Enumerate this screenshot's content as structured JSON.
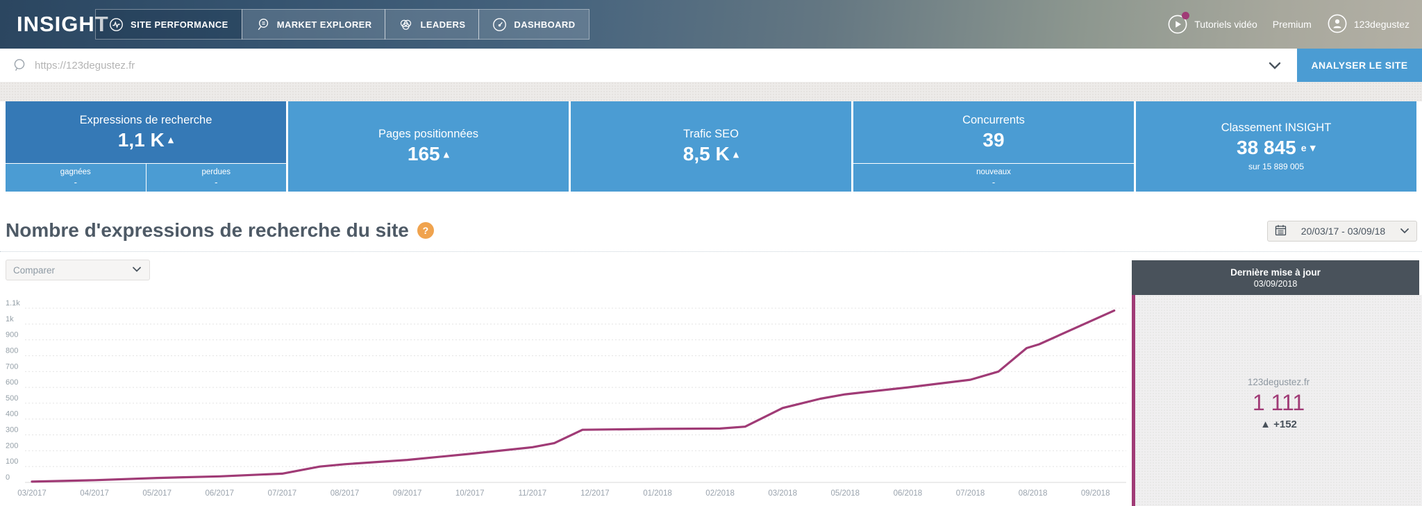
{
  "brand": {
    "logo": "INSIGHT"
  },
  "nav": {
    "tabs": [
      {
        "label": "SITE PERFORMANCE",
        "icon": "pulse-icon",
        "active": true
      },
      {
        "label": "MARKET EXPLORER",
        "icon": "magnifier-lines-icon",
        "active": false
      },
      {
        "label": "LEADERS",
        "icon": "venn-icon",
        "active": false
      },
      {
        "label": "DASHBOARD",
        "icon": "gauge-icon",
        "active": false
      }
    ]
  },
  "user_area": {
    "tutorials": "Tutoriels vidéo",
    "premium": "Premium",
    "username": "123degustez"
  },
  "search": {
    "url": "https://123degustez.fr",
    "analyze_button": "ANALYSER LE SITE"
  },
  "kpi_cards": [
    {
      "title": "Expressions de recherche",
      "value": "1,1 K",
      "trend": "up",
      "sub_cells": [
        {
          "label": "gagnées",
          "value": "-"
        },
        {
          "label": "perdues",
          "value": "-"
        }
      ]
    },
    {
      "title": "Pages positionnées",
      "value": "165",
      "trend": "up"
    },
    {
      "title": "Trafic SEO",
      "value": "8,5 K",
      "trend": "up"
    },
    {
      "title": "Concurrents",
      "value": "39",
      "sub_cells": [
        {
          "label": "nouveaux",
          "value": "-"
        }
      ]
    },
    {
      "title": "Classement INSIGHT",
      "value": "38 845",
      "ordinal": "e",
      "trend": "down",
      "subtitle": "sur 15 889 005"
    }
  ],
  "section": {
    "title": "Nombre d'expressions de recherche du site",
    "help": "?"
  },
  "date_range": {
    "label": "20/03/17 - 03/09/18"
  },
  "compare": {
    "placeholder": "Comparer"
  },
  "tooltip_panel": {
    "header": "Dernière mise à jour",
    "date": "03/09/2018",
    "site": "123degustez.fr",
    "value": "1 111",
    "delta": "+152"
  },
  "icons": {
    "trend_up": "▲",
    "trend_down": "▼"
  },
  "colors": {
    "accent_blue": "#4b9cd3",
    "dark_blue": "#3579b6",
    "line_magenta": "#a03b76",
    "panel_dark": "#49525b",
    "help_orange": "#f0a34e"
  },
  "chart_data": {
    "type": "line",
    "title": "Nombre d'expressions de recherche du site",
    "xlabel": "",
    "ylabel": "",
    "ylim": [
      0,
      1100
    ],
    "grid": "horizontal-dotted",
    "legend_position": "none",
    "x_labels": [
      "03/2017",
      "04/2017",
      "05/2017",
      "06/2017",
      "07/2017",
      "08/2017",
      "09/2017",
      "10/2017",
      "11/2017",
      "12/2017",
      "01/2018",
      "02/2018",
      "03/2018",
      "05/2018",
      "06/2018",
      "07/2018",
      "08/2018",
      "09/2018"
    ],
    "y_ticks": [
      "1.1k",
      "1k",
      "900",
      "800",
      "700",
      "600",
      "500",
      "400",
      "300",
      "200",
      "100",
      "0"
    ],
    "y_tick_values": [
      1100,
      1000,
      900,
      800,
      700,
      600,
      500,
      400,
      300,
      200,
      100,
      0
    ],
    "series": [
      {
        "name": "123degustez.fr",
        "color": "#a03b76",
        "points": [
          [
            0,
            5
          ],
          [
            1,
            14
          ],
          [
            2,
            28
          ],
          [
            3,
            38
          ],
          [
            4,
            55
          ],
          [
            4.6,
            100
          ],
          [
            5,
            115
          ],
          [
            6,
            142
          ],
          [
            7,
            180
          ],
          [
            8,
            222
          ],
          [
            8.35,
            248
          ],
          [
            8.8,
            332
          ],
          [
            10,
            338
          ],
          [
            11,
            340
          ],
          [
            11.4,
            352
          ],
          [
            12,
            470
          ],
          [
            12.6,
            528
          ],
          [
            13,
            556
          ],
          [
            14,
            600
          ],
          [
            15,
            648
          ],
          [
            15.45,
            700
          ],
          [
            15.9,
            848
          ],
          [
            16.1,
            872
          ],
          [
            17.3,
            1085
          ]
        ]
      }
    ],
    "last_point": {
      "date": "03/09/2018",
      "value": 1111,
      "delta": 152
    }
  }
}
